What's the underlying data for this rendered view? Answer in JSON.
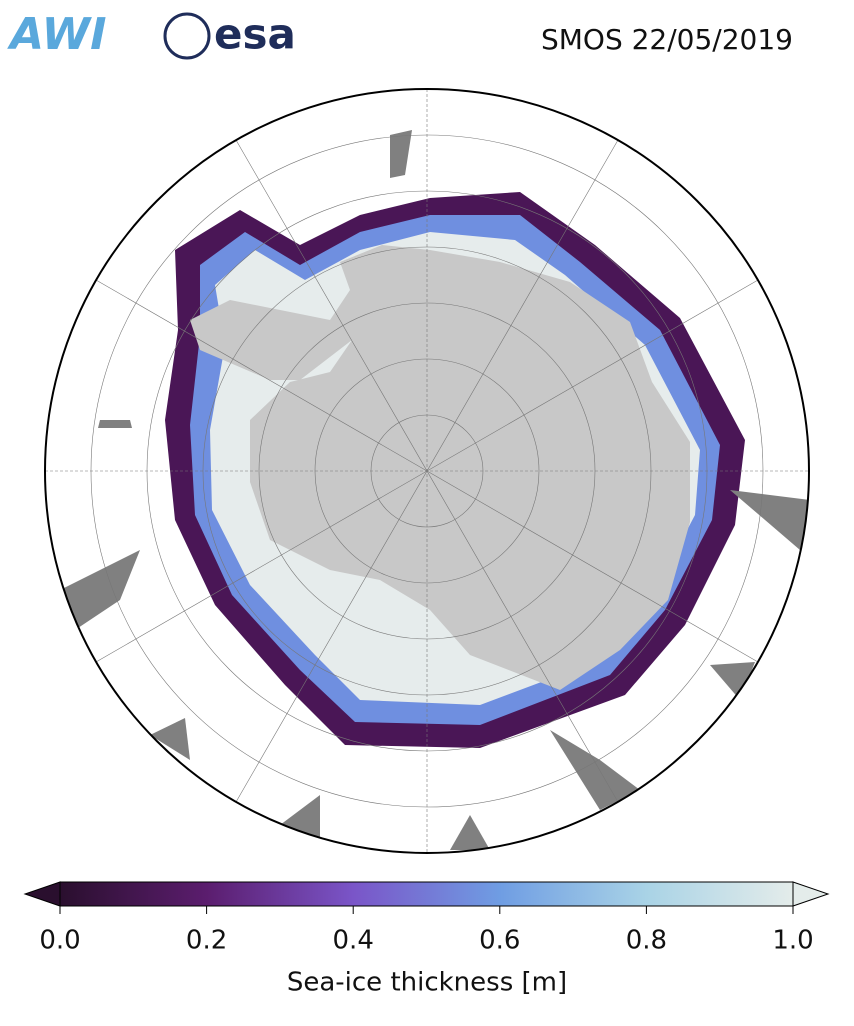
{
  "header": {
    "title": "SMOS 22/05/2019",
    "logos": [
      "AWI",
      "esa"
    ]
  },
  "colorbar": {
    "label": "Sea-ice thickness [m]",
    "lim": [
      0,
      1
    ],
    "ticks": [
      {
        "value": 0,
        "label": "0.0"
      },
      0.2,
      0.4,
      0.6,
      0.8,
      {
        "value": 1,
        "label": "1.0"
      }
    ],
    "colors": [
      "#2a0f2e",
      "#5b1d6e",
      "#7a55c8",
      "#6f9de3",
      "#a9d3e6",
      "#e4ecea"
    ]
  }
}
